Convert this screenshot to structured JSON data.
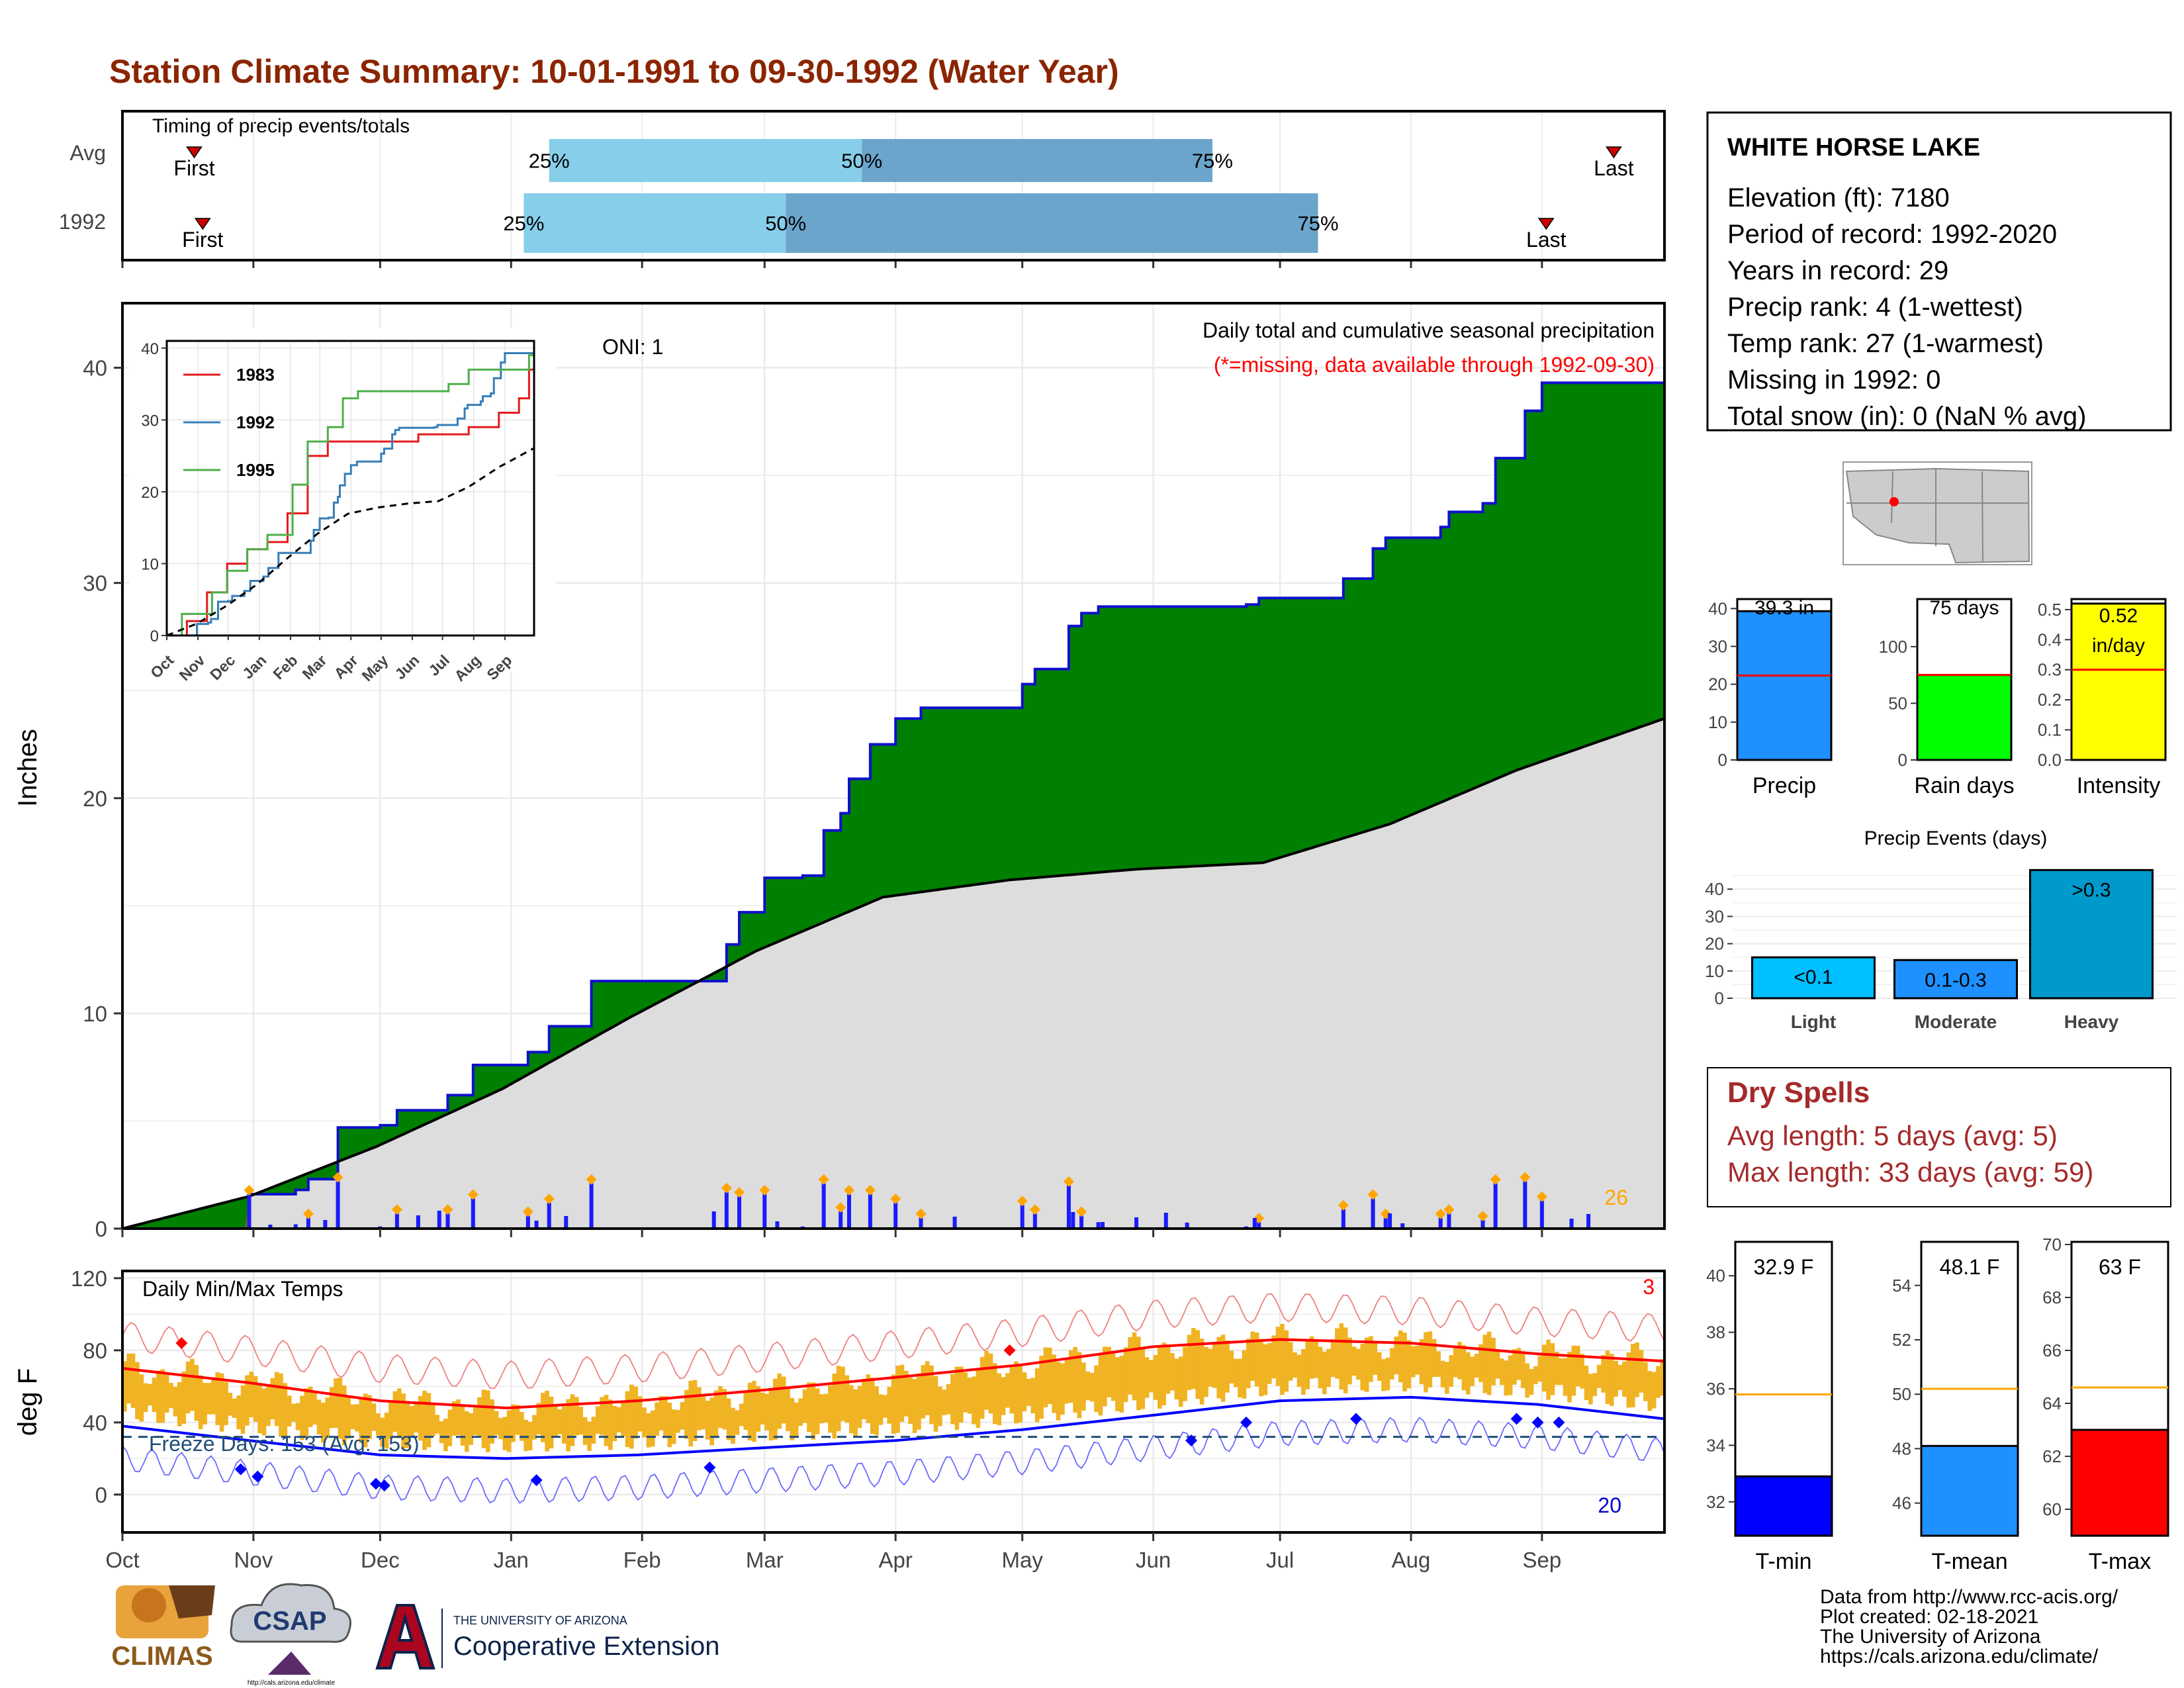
{
  "header": {
    "title": "Station Climate Summary: 10-01-1991 to 09-30-1992 (Water Year)"
  },
  "timing": {
    "label": "Timing of precip events/totals",
    "rows": [
      {
        "name": "Avg",
        "first_label": "First",
        "last_label": "Last",
        "first_day": 17,
        "last_day": 353,
        "p25": 101,
        "p50": 175,
        "p75": 258
      },
      {
        "name": "1992",
        "first_label": "First",
        "last_label": "Last",
        "first_day": 19,
        "last_day": 337,
        "p25": 95,
        "p50": 157,
        "p75": 283
      }
    ],
    "pct_labels": [
      "25%",
      "50%",
      "75%"
    ],
    "colors": {
      "light": "#87CEEB",
      "dark": "#6BA5CC",
      "marker": "#CC0000"
    }
  },
  "station": {
    "name": "WHITE HORSE LAKE",
    "lines": [
      "Elevation (ft): 7180",
      "Period of record: 1992-2020",
      "Years in record: 29",
      "Precip rank: 4 (1-wettest)",
      "Temp rank: 27 (1-warmest)",
      "Missing in 1992: 0",
      "Total snow (in): 0 (NaN % avg)"
    ]
  },
  "precip_panel": {
    "ylabel": "Inches",
    "oni": "ONI: 1",
    "note1": "Daily total and cumulative seasonal precipitation",
    "note2": "(*=missing, data available through 1992-09-30)",
    "count_label": "26",
    "month_labels": [
      "Oct",
      "Nov",
      "Dec",
      "Jan",
      "Feb",
      "Mar",
      "Apr",
      "May",
      "Jun",
      "Jul",
      "Aug",
      "Sep"
    ],
    "colors": {
      "above": "#008000",
      "below": "#DDDDDD",
      "early": "#8B5A1A",
      "line": "#1010CC",
      "bars": "#1A1AFF",
      "heavy": "#FFA500"
    }
  },
  "inset": {
    "month_labels": [
      "Oct",
      "Nov",
      "Dec",
      "Jan",
      "Feb",
      "Mar",
      "Apr",
      "May",
      "Jun",
      "Jul",
      "Aug",
      "Sep"
    ],
    "legend": [
      {
        "name": "1983",
        "color": "#E41A1C"
      },
      {
        "name": "1992",
        "color": "#377EB8"
      },
      {
        "name": "1995",
        "color": "#4DAF4A"
      }
    ]
  },
  "temp_panel": {
    "ylabel": "deg F",
    "label": "Daily Min/Max Temps",
    "freeze": "Freeze Days: 153 (Avg: 153)",
    "count_high": "3",
    "count_low": "20",
    "month_labels": [
      "Oct",
      "Nov",
      "Dec",
      "Jan",
      "Feb",
      "Mar",
      "Apr",
      "May",
      "Jun",
      "Jul",
      "Aug",
      "Sep"
    ]
  },
  "bar_summaries": [
    {
      "value_label": "39.3 in",
      "value": 39.3,
      "avg": 22.3,
      "ticks": [
        "0",
        "10",
        "20",
        "30",
        "40"
      ],
      "label": "Precip",
      "color": "#1E90FF"
    },
    {
      "value_label": "75 days",
      "value": 75,
      "avg": 75,
      "ticks": [
        "0",
        "50",
        "100"
      ],
      "label": "Rain days",
      "color": "#00FF00"
    },
    {
      "value_label": "0.52 in/day",
      "value": 0.52,
      "avg": 0.3,
      "ticks": [
        "0.0",
        "0.1",
        "0.2",
        "0.3",
        "0.4",
        "0.5"
      ],
      "label": "Intensity",
      "color": "#FFFF00"
    }
  ],
  "events": {
    "title": "Precip Events (days)",
    "ticks": [
      "0",
      "10",
      "20",
      "30",
      "40"
    ],
    "bars": [
      {
        "category": "Light",
        "label": "<0.1",
        "value": 15,
        "color": "#00BFFF"
      },
      {
        "category": "Moderate",
        "label": "0.1-0.3",
        "value": 14,
        "color": "#1E90FF"
      },
      {
        "category": "Heavy",
        "label": ">0.3",
        "value": 47,
        "color": "#0099CC"
      }
    ]
  },
  "dry_spells": {
    "title": "Dry Spells",
    "line1": "Avg length: 5 days (avg: 5)",
    "line2": "Max length: 33 days (avg: 59)",
    "color": "#A52A2A"
  },
  "temp_summaries": [
    {
      "value_label": "32.9 F",
      "value": 32.9,
      "avg": 35.8,
      "ticks": [
        "32",
        "34",
        "36",
        "38",
        "40"
      ],
      "label": "T-min",
      "color": "#0000FF"
    },
    {
      "value_label": "48.1 F",
      "value": 48.1,
      "avg": 50.2,
      "ticks": [
        "46",
        "48",
        "50",
        "52",
        "54"
      ],
      "label": "T-mean",
      "color": "#1E90FF"
    },
    {
      "value_label": "63 F",
      "value": 63,
      "avg": 64.6,
      "ticks": [
        "60",
        "62",
        "64",
        "66",
        "68",
        "70"
      ],
      "label": "T-max",
      "color": "#FF0000"
    }
  ],
  "footer": {
    "lines": [
      "Data from http://www.rcc-acis.org/",
      "Plot created: 02-18-2021",
      "The University of Arizona",
      "https://cals.arizona.edu/climate/"
    ],
    "climas": "CLIMAS",
    "csap": "CSAP",
    "csap_url": "http://cals.arizona.edu/climate",
    "ua_small": "THE UNIVERSITY OF ARIZONA",
    "ua_big": "Cooperative Extension"
  },
  "chart_data": [
    {
      "type": "area",
      "xlabel": "",
      "ylabel": "Inches",
      "ylim": [
        0,
        43
      ],
      "ticks": [
        0,
        10,
        20,
        30,
        40
      ],
      "categories": [
        "Oct",
        "Nov",
        "Dec",
        "Jan",
        "Feb",
        "Mar",
        "Apr",
        "May",
        "Jun",
        "Jul",
        "Aug",
        "Sep"
      ],
      "series": [
        {
          "name": "1992",
          "x": [
            0,
            30,
            41,
            44,
            51,
            61,
            65,
            77,
            83,
            95,
            96,
            101,
            111,
            126,
            143,
            146,
            152,
            161,
            166,
            170,
            172,
            177,
            183,
            189,
            208,
            213,
            216,
            224,
            227,
            231,
            248,
            266,
            269,
            289,
            296,
            299,
            312,
            314,
            322,
            325,
            332,
            336,
            338,
            365
          ],
          "values": [
            0,
            1.6,
            1.8,
            2.3,
            4.7,
            4.8,
            5.5,
            6.2,
            7.6,
            7.6,
            8.2,
            9.4,
            11.5,
            11.5,
            13.2,
            14.7,
            16.3,
            16.4,
            18.5,
            19.3,
            20.9,
            22.5,
            23.7,
            24.2,
            24.2,
            25.3,
            26.0,
            28.0,
            28.6,
            28.9,
            28.9,
            29.0,
            29.3,
            30.2,
            31.6,
            32.1,
            32.6,
            33.3,
            33.7,
            35.8,
            38.0,
            39.3,
            39.3,
            39.3
          ]
        },
        {
          "name": "",
          "x": [
            0,
            30,
            60,
            90,
            120,
            150,
            180,
            210,
            240,
            270,
            300,
            330,
            365
          ],
          "values": [
            0,
            1.5,
            3.8,
            6.5,
            9.8,
            12.9,
            15.4,
            16.2,
            16.7,
            17.0,
            18.8,
            21.3,
            23.7
          ]
        }
      ]
    },
    {
      "type": "line",
      "ylabel": "deg F",
      "ylim": [
        -20,
        122
      ],
      "ticks": [
        0,
        40,
        80,
        120
      ],
      "categories": [
        "Oct",
        "Nov",
        "Dec",
        "Jan",
        "Feb",
        "Mar",
        "Apr",
        "May",
        "Jun",
        "Jul",
        "Aug",
        "Sep"
      ],
      "series": [
        {
          "name": "avg max",
          "x": [
            0,
            30,
            61,
            91,
            122,
            152,
            183,
            213,
            244,
            274,
            305,
            335,
            365
          ],
          "values": [
            70,
            62,
            52,
            48,
            52,
            58,
            65,
            72,
            82,
            86,
            84,
            78,
            74
          ]
        },
        {
          "name": "avg min",
          "x": [
            0,
            30,
            61,
            91,
            122,
            152,
            183,
            213,
            244,
            274,
            305,
            335,
            365
          ],
          "values": [
            38,
            30,
            22,
            20,
            22,
            26,
            30,
            36,
            44,
            52,
            54,
            50,
            42
          ]
        },
        {
          "name": "freeze",
          "x": [
            0,
            365
          ],
          "values": [
            32,
            32
          ]
        }
      ]
    },
    {
      "type": "bar",
      "categories": [
        "Light",
        "Moderate",
        "Heavy"
      ],
      "values": [
        15,
        14,
        47
      ],
      "title": "Precip Events (days)",
      "ylim": [
        0,
        50
      ]
    }
  ]
}
